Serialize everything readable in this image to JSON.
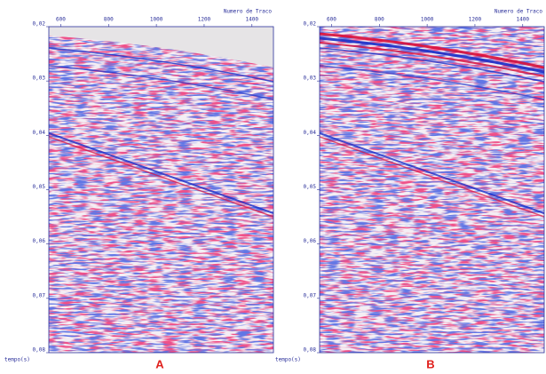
{
  "chart_data": [
    {
      "type": "seismic",
      "x_label": "Numero de Traco",
      "y_label": "tempo(s)",
      "label": "A",
      "xlim": [
        550,
        1490
      ],
      "xticks": [
        600,
        800,
        1000,
        1200,
        1400
      ],
      "ylim": [
        0.02,
        0.08
      ],
      "yticks": [
        {
          "value": 0.02,
          "label": "0,02"
        },
        {
          "value": 0.03,
          "label": "0,03"
        },
        {
          "value": 0.04,
          "label": "0,04"
        },
        {
          "value": 0.05,
          "label": "0,05"
        },
        {
          "value": 0.06,
          "label": "0,06"
        },
        {
          "value": 0.07,
          "label": "0,07"
        },
        {
          "value": 0.08,
          "label": "0,08"
        }
      ]
    },
    {
      "type": "seismic",
      "x_label": "Numero de Traco",
      "y_label": "tempo(s)",
      "label": "B",
      "xlim": [
        550,
        1490
      ],
      "xticks": [
        600,
        800,
        1000,
        1200,
        1400
      ],
      "ylim": [
        0.02,
        0.08
      ],
      "yticks": [
        {
          "value": 0.02,
          "label": "0,02"
        },
        {
          "value": 0.03,
          "label": "0,03"
        },
        {
          "value": 0.04,
          "label": "0,04"
        },
        {
          "value": 0.05,
          "label": "0,05"
        },
        {
          "value": 0.06,
          "label": "0,06"
        },
        {
          "value": 0.07,
          "label": "0,07"
        },
        {
          "value": 0.08,
          "label": "0,08"
        }
      ]
    }
  ]
}
